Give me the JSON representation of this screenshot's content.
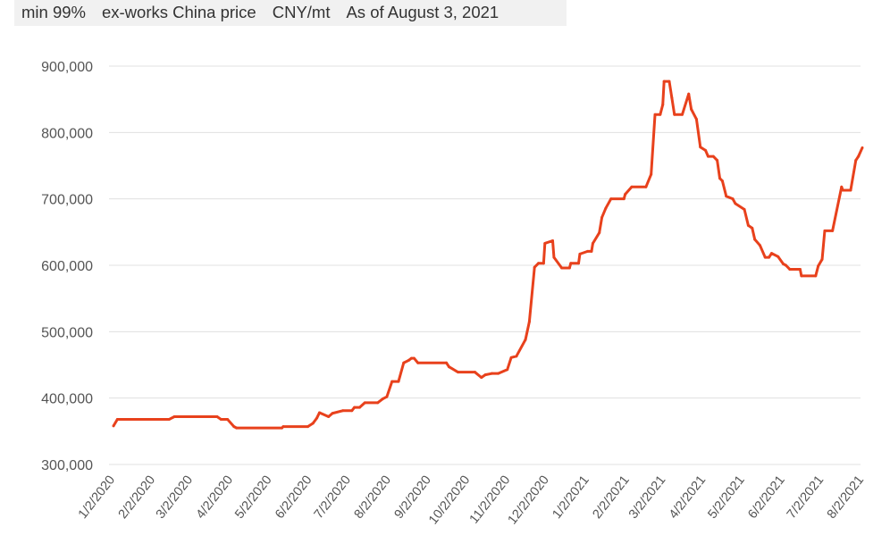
{
  "header": {
    "purity": "min 99%",
    "basis": "ex-works China price",
    "unit": "CNY/mt",
    "as_of": "As of August 3, 2021"
  },
  "colors": {
    "line": "#e8411c",
    "grid": "#e0e0e0",
    "header_bg": "#f1f1f1"
  },
  "chart_data": {
    "type": "line",
    "title": "",
    "xlabel": "",
    "ylabel": "",
    "ylim": [
      300000,
      900000
    ],
    "yticks": [
      "300,000",
      "400,000",
      "500,000",
      "600,000",
      "700,000",
      "800,000",
      "900,000"
    ],
    "ytick_values": [
      300000,
      400000,
      500000,
      600000,
      700000,
      800000,
      900000
    ],
    "xticks": [
      "1/2/2020",
      "2/2/2020",
      "3/2/2020",
      "4/2/2020",
      "5/2/2020",
      "6/2/2020",
      "7/2/2020",
      "8/2/2020",
      "9/2/2020",
      "10/2/2020",
      "11/2/2020",
      "12/2/2020",
      "1/2/2021",
      "2/2/2021",
      "3/2/2021",
      "4/2/2021",
      "5/2/2021",
      "6/2/2021",
      "7/2/2021",
      "8/2/2021"
    ],
    "xtick_dates": [
      "2020-01-02",
      "2020-02-02",
      "2020-03-02",
      "2020-04-02",
      "2020-05-02",
      "2020-06-02",
      "2020-07-02",
      "2020-08-02",
      "2020-09-02",
      "2020-10-02",
      "2020-11-02",
      "2020-12-02",
      "2021-01-02",
      "2021-02-02",
      "2021-03-02",
      "2021-04-02",
      "2021-05-02",
      "2021-06-02",
      "2021-07-02",
      "2021-08-02"
    ],
    "grid": "horizontal",
    "legend": "none",
    "series": [
      {
        "x": [
          "2020-01-02",
          "2020-01-05",
          "2020-02-14",
          "2020-02-18",
          "2020-03-22",
          "2020-03-25",
          "2020-03-30",
          "2020-04-04",
          "2020-04-06",
          "2020-05-11",
          "2020-05-12",
          "2020-05-31",
          "2020-06-04",
          "2020-06-07",
          "2020-06-09",
          "2020-06-16",
          "2020-06-19",
          "2020-06-27",
          "2020-07-04",
          "2020-07-06",
          "2020-07-10",
          "2020-07-14",
          "2020-07-24",
          "2020-07-28",
          "2020-07-31",
          "2020-08-04",
          "2020-08-09",
          "2020-08-13",
          "2020-08-17",
          "2020-08-19",
          "2020-08-21",
          "2020-08-24",
          "2020-09-15",
          "2020-09-17",
          "2020-09-24",
          "2020-10-07",
          "2020-10-12",
          "2020-10-15",
          "2020-10-20",
          "2020-10-25",
          "2020-11-01",
          "2020-11-04",
          "2020-11-08",
          "2020-11-15",
          "2020-11-18",
          "2020-11-22",
          "2020-11-25",
          "2020-11-29",
          "2020-11-30",
          "2020-12-06",
          "2020-12-07",
          "2020-12-13",
          "2020-12-19",
          "2020-12-20",
          "2020-12-26",
          "2020-12-27",
          "2021-01-02",
          "2021-01-05",
          "2021-01-06",
          "2021-01-11",
          "2021-01-13",
          "2021-01-16",
          "2021-01-20",
          "2021-01-30",
          "2021-01-31",
          "2021-02-05",
          "2021-02-16",
          "2021-02-20",
          "2021-02-23",
          "2021-02-27",
          "2021-03-01",
          "2021-03-02",
          "2021-03-06",
          "2021-03-08",
          "2021-03-10",
          "2021-03-16",
          "2021-03-21",
          "2021-03-23",
          "2021-03-27",
          "2021-03-30",
          "2021-04-03",
          "2021-04-05",
          "2021-04-09",
          "2021-04-12",
          "2021-04-14",
          "2021-04-16",
          "2021-04-19",
          "2021-04-24",
          "2021-04-26",
          "2021-05-03",
          "2021-05-06",
          "2021-05-09",
          "2021-05-11",
          "2021-05-15",
          "2021-05-19",
          "2021-05-22",
          "2021-05-24",
          "2021-05-29",
          "2021-06-02",
          "2021-06-04",
          "2021-06-07",
          "2021-06-15",
          "2021-06-16",
          "2021-06-27",
          "2021-06-29",
          "2021-07-02",
          "2021-07-04",
          "2021-07-10",
          "2021-07-17",
          "2021-07-18",
          "2021-07-24",
          "2021-07-28",
          "2021-07-30",
          "2021-08-02"
        ],
        "y": [
          358000,
          368000,
          368000,
          372000,
          372000,
          368000,
          368000,
          357000,
          355000,
          355000,
          357000,
          357000,
          362000,
          370000,
          378000,
          372000,
          377000,
          381000,
          381000,
          386000,
          386000,
          393000,
          393000,
          399000,
          402000,
          425000,
          425000,
          453000,
          457000,
          460000,
          460000,
          453000,
          453000,
          447000,
          439000,
          439000,
          431000,
          435000,
          437000,
          437000,
          443000,
          461000,
          463000,
          488000,
          515000,
          597000,
          603000,
          603000,
          633000,
          637000,
          612000,
          596000,
          596000,
          603000,
          603000,
          617000,
          621000,
          621000,
          633000,
          649000,
          672000,
          686000,
          700000,
          700000,
          707000,
          718000,
          718000,
          737000,
          827000,
          827000,
          842000,
          877000,
          877000,
          852000,
          827000,
          827000,
          858000,
          835000,
          820000,
          778000,
          773000,
          764000,
          764000,
          758000,
          731000,
          727000,
          704000,
          700000,
          693000,
          684000,
          660000,
          656000,
          639000,
          630000,
          612000,
          612000,
          618000,
          613000,
          602000,
          600000,
          594000,
          594000,
          584000,
          584000,
          599000,
          609000,
          652000,
          652000,
          718000,
          713000,
          713000,
          758000,
          764000,
          777000
        ]
      }
    ]
  }
}
